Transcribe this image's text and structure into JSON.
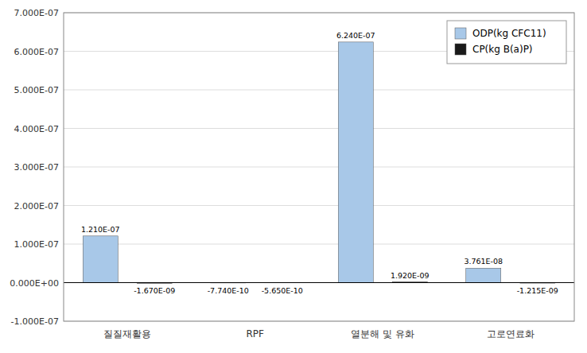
{
  "chart_data": {
    "type": "bar",
    "categories": [
      "질질재활용",
      "RPF",
      "열분해 및 유화",
      "고로연료화"
    ],
    "series": [
      {
        "name": "ODP(kg CFC11)",
        "color": "#A8C8E8",
        "values": [
          1.21e-07,
          -7.74e-10,
          6.24e-07,
          3.761e-08
        ],
        "value_labels": [
          "1.210E-07",
          "-7.740E-10",
          "6.240E-07",
          "3.761E-08"
        ]
      },
      {
        "name": "CP(kg B(a)P)",
        "color": "#1A1A1A",
        "values": [
          -1.67e-09,
          -5.65e-10,
          1.92e-09,
          -1.215e-09
        ],
        "value_labels": [
          "-1.670E-09",
          "-5.650E-10",
          "1.920E-09",
          "-1.215E-09"
        ]
      }
    ],
    "ylim": [
      -1e-07,
      7e-07
    ],
    "yticks": [
      {
        "value": -1e-07,
        "label": "-1.000E-07"
      },
      {
        "value": 0.0,
        "label": "0.000E+00"
      },
      {
        "value": 1e-07,
        "label": "1.000E-07"
      },
      {
        "value": 2e-07,
        "label": "2.000E-07"
      },
      {
        "value": 3e-07,
        "label": "3.000E-07"
      },
      {
        "value": 4e-07,
        "label": "4.000E-07"
      },
      {
        "value": 5e-07,
        "label": "5.000E-07"
      },
      {
        "value": 6e-07,
        "label": "6.000E-07"
      },
      {
        "value": 7e-07,
        "label": "7.000E-07"
      }
    ],
    "grid": true,
    "legend": "top-right",
    "data_labels": true
  }
}
